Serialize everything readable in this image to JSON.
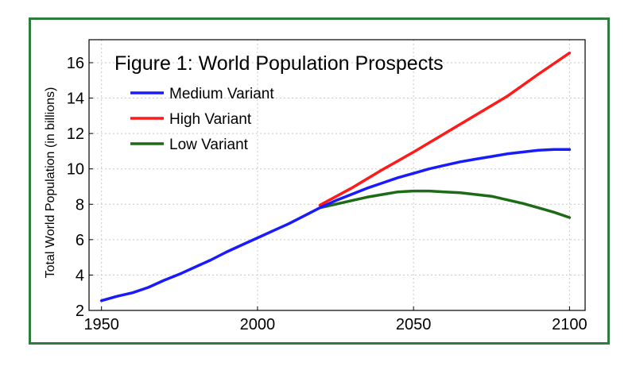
{
  "chart_data": {
    "type": "line",
    "title": "Figure 1: World Population Prospects",
    "xlabel": "",
    "ylabel": "Total World Population (in billions)",
    "xlim": [
      1946,
      2105
    ],
    "ylim": [
      2,
      17.3
    ],
    "x_ticks": [
      1950,
      2000,
      2050,
      2100
    ],
    "y_ticks": [
      2,
      4,
      6,
      8,
      10,
      12,
      14,
      16
    ],
    "grid": true,
    "legend_placement": "top-left",
    "series": [
      {
        "name": "Medium Variant",
        "color": "#1a1aff",
        "x": [
          1950,
          1955,
          1960,
          1965,
          1970,
          1975,
          1980,
          1985,
          1990,
          1995,
          2000,
          2005,
          2010,
          2015,
          2020,
          2025,
          2030,
          2035,
          2040,
          2045,
          2050,
          2055,
          2060,
          2065,
          2070,
          2075,
          2080,
          2085,
          2090,
          2095,
          2100
        ],
        "y": [
          2.55,
          2.8,
          3.0,
          3.3,
          3.7,
          4.05,
          4.45,
          4.85,
          5.3,
          5.7,
          6.1,
          6.5,
          6.9,
          7.35,
          7.8,
          8.2,
          8.55,
          8.9,
          9.2,
          9.5,
          9.75,
          10.0,
          10.2,
          10.4,
          10.55,
          10.7,
          10.85,
          10.95,
          11.05,
          11.1,
          11.1
        ]
      },
      {
        "name": "High Variant",
        "color": "#ff1a1a",
        "x": [
          2020,
          2030,
          2040,
          2050,
          2060,
          2070,
          2080,
          2090,
          2100
        ],
        "y": [
          7.95,
          8.9,
          9.95,
          10.95,
          12.0,
          13.05,
          14.1,
          15.35,
          16.55
        ]
      },
      {
        "name": "Low Variant",
        "color": "#1d6b16",
        "x": [
          2020,
          2025,
          2030,
          2035,
          2040,
          2045,
          2050,
          2055,
          2060,
          2065,
          2070,
          2075,
          2080,
          2085,
          2090,
          2095,
          2100
        ],
        "y": [
          7.8,
          8.0,
          8.2,
          8.4,
          8.55,
          8.7,
          8.75,
          8.75,
          8.7,
          8.65,
          8.55,
          8.45,
          8.25,
          8.05,
          7.8,
          7.55,
          7.25
        ]
      }
    ]
  }
}
